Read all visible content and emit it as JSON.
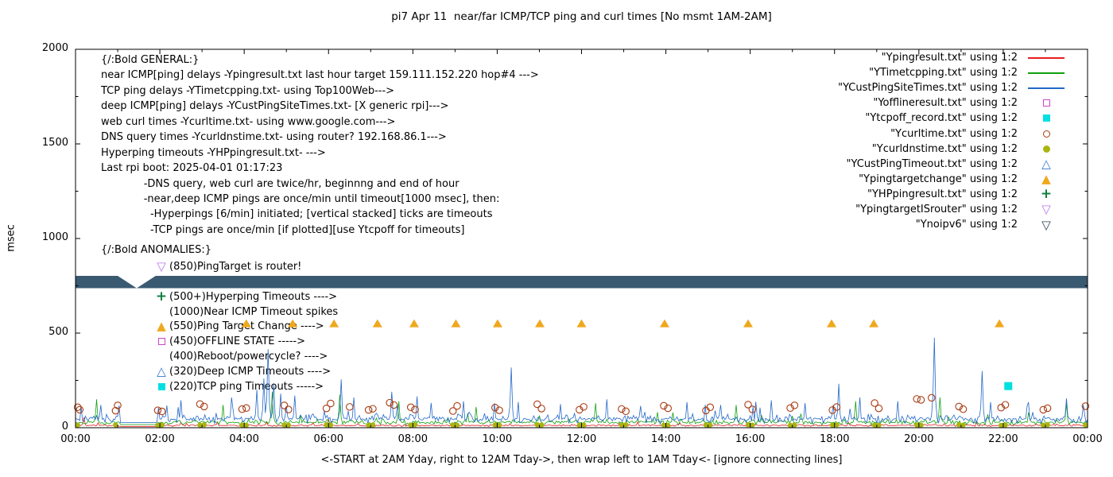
{
  "title": "pi7 Apr 11  near/far ICMP/TCP ping and curl times [No msmt 1AM-2AM]",
  "axes": {
    "ylabel": "msec",
    "xlabel": "<-START at 2AM Yday, right to 12AM Tday->, then wrap left to 1AM Tday<- [ignore connecting lines]",
    "yticks": [
      0,
      500,
      1000,
      1500,
      2000
    ],
    "xticks": [
      "00:00",
      "02:00",
      "04:00",
      "06:00",
      "08:00",
      "10:00",
      "12:00",
      "14:00",
      "16:00",
      "18:00",
      "20:00",
      "22:00",
      "00:00"
    ]
  },
  "general": {
    "lines": [
      "{/:Bold GENERAL:}",
      "near ICMP[ping] delays -Ypingresult.txt last hour target 159.111.152.220 hop#4 --->",
      "TCP ping delays -YTimetcpping.txt- using Top100Web--->",
      "deep ICMP[ping] delays -YCustPingSiteTimes.txt- [X generic rpi]--->",
      "web curl times -Ycurltime.txt- using www.google.com--->",
      "DNS query times -Ycurldnstime.txt- using router? 192.168.86.1--->",
      "Hyperping timeouts -YHPpingresult.txt- --->",
      "Last rpi boot: 2025-04-01 01:17:23",
      "             -DNS query, web curl are twice/hr, beginnng and end of hour",
      "             -near,deep ICMP pings are once/min until timeout[1000 msec], then:",
      "               -Hyperpings [6/min] initiated; [vertical stacked] ticks are timeouts",
      "               -TCP pings are once/min [if plotted][use Ytcpoff for timeouts]"
    ]
  },
  "anomalies": {
    "header": "{/:Bold ANOMALIES:}",
    "items": [
      {
        "marker": "triangle-down-open",
        "color": "#bb77ee",
        "text": "(850)PingTarget is router!"
      },
      {
        "marker": "plus",
        "color": "#0f8040",
        "text": "(500+)Hyperping Timeouts ---->"
      },
      {
        "marker": "",
        "color": "",
        "text": "(1000)Near ICMP Timeout spikes"
      },
      {
        "marker": "triangle-up-filled",
        "color": "#efa81e",
        "text": "(550)Ping Target Change ---->"
      },
      {
        "marker": "open-square",
        "color": "#cc44cc",
        "text": "(450)OFFLINE STATE ----->"
      },
      {
        "marker": "",
        "color": "",
        "text": "(400)Reboot/powercycle? ---->"
      },
      {
        "marker": "triangle-up-open",
        "color": "#3377cc",
        "text": "(320)Deep ICMP Timeouts ---->"
      },
      {
        "marker": "filled-square",
        "color": "#00e0e0",
        "text": "(220)TCP ping Timeouts ----->"
      }
    ]
  },
  "legend": {
    "entries": [
      {
        "label": "\"Ypingresult.txt\" using 1:2",
        "sample": "line",
        "color": "#e62020"
      },
      {
        "label": "\"YTimetcpping.txt\" using 1:2",
        "sample": "line",
        "color": "#10a010"
      },
      {
        "label": "\"YCustPingSiteTimes.txt\" using 1:2",
        "sample": "line",
        "color": "#2468c8"
      },
      {
        "label": "\"Yofflineresult.txt\" using 1:2",
        "sample": "open-square",
        "color": "#cc44cc"
      },
      {
        "label": "\"Ytcpoff_record.txt\" using 1:2",
        "sample": "filled-square",
        "color": "#00e0e0"
      },
      {
        "label": "\"Ycurltime.txt\" using 1:2",
        "sample": "open-circle",
        "color": "#a93b12"
      },
      {
        "label": "\"Ycurldnstime.txt\" using 1:2",
        "sample": "filled-circle",
        "color": "#aab410"
      },
      {
        "label": "\"YCustPingTimeout.txt\" using 1:2",
        "sample": "triangle-up-open",
        "color": "#3377cc"
      },
      {
        "label": "\"Ypingtargetchange\" using 1:2",
        "sample": "triangle-up-filled",
        "color": "#efa81e"
      },
      {
        "label": "\"YHPpingresult.txt\" using 1:2",
        "sample": "plus",
        "color": "#0f8040"
      },
      {
        "label": "\"YpingtargetISrouter\" using 1:2",
        "sample": "triangle-down-open",
        "color": "#bb77ee"
      },
      {
        "label": "\"Ynoipv6\" using 1:2",
        "sample": "triangle-down-open",
        "color": "#2e4356"
      }
    ]
  },
  "chart_data": {
    "type": "line",
    "title": "pi7 Apr 11  near/far ICMP/TCP ping and curl times [No msmt 1AM-2AM]",
    "xlabel": "<-START at 2AM Yday, right to 12AM Tday->, then wrap left to 1AM Tday<- [ignore connecting lines]",
    "ylabel": "msec",
    "x_unit": "hours",
    "xlim": [
      0,
      24
    ],
    "ylim": [
      0,
      2000
    ],
    "grid": false,
    "legend_position": "top-right",
    "no_measurement_gap_hours": [
      1.05,
      1.93
    ],
    "band": {
      "series": "Ynoipv6",
      "value_msec": 770,
      "thickness_msec": 65,
      "color": "#3a5a72",
      "gap_hours": [
        1.0,
        1.9
      ]
    },
    "line_series": [
      {
        "name": "Ypingresult.txt",
        "color": "#e62020",
        "baseline_msec": 12,
        "noise_msec": 7,
        "seed": 11,
        "spikes": [
          [
            0.2,
            55
          ],
          [
            6.0,
            45
          ]
        ]
      },
      {
        "name": "YTimetcpping.txt",
        "color": "#10a010",
        "baseline_msec": 28,
        "noise_msec": 20,
        "seed": 22,
        "spikes": [
          [
            0.5,
            150
          ],
          [
            3.5,
            120
          ],
          [
            4.65,
            190
          ],
          [
            6.25,
            175
          ],
          [
            7.65,
            140
          ],
          [
            9.5,
            110
          ],
          [
            12.33,
            130
          ],
          [
            15.66,
            120
          ],
          [
            18.5,
            140
          ],
          [
            20.5,
            160
          ],
          [
            23.5,
            130
          ]
        ]
      },
      {
        "name": "YCustPingSiteTimes.txt",
        "color": "#2468c8",
        "baseline_msec": 45,
        "noise_msec": 32,
        "seed": 33,
        "spikes": [
          [
            0.6,
            120
          ],
          [
            2.5,
            145
          ],
          [
            3.7,
            160
          ],
          [
            4.3,
            200
          ],
          [
            4.45,
            260
          ],
          [
            4.55,
            415
          ],
          [
            4.7,
            230
          ],
          [
            4.85,
            180
          ],
          [
            5.2,
            170
          ],
          [
            6.3,
            255
          ],
          [
            6.6,
            160
          ],
          [
            7.5,
            190
          ],
          [
            8.1,
            165
          ],
          [
            9.2,
            140
          ],
          [
            10.33,
            318
          ],
          [
            11.5,
            125
          ],
          [
            12.6,
            150
          ],
          [
            13.4,
            115
          ],
          [
            14.5,
            135
          ],
          [
            15.3,
            120
          ],
          [
            16.5,
            145
          ],
          [
            17.3,
            130
          ],
          [
            18.1,
            232
          ],
          [
            18.6,
            160
          ],
          [
            19.5,
            140
          ],
          [
            20.35,
            475
          ],
          [
            21.5,
            300
          ],
          [
            22.6,
            135
          ],
          [
            23.5,
            155
          ],
          [
            23.9,
            120
          ]
        ]
      }
    ],
    "scatter_series": [
      {
        "name": "Ycurltime.txt",
        "marker": "open-circle",
        "color": "#a93b12",
        "points": [
          [
            0.05,
            108
          ],
          [
            0.1,
            95
          ],
          [
            0.95,
            90
          ],
          [
            1.0,
            118
          ],
          [
            1.95,
            92
          ],
          [
            2.05,
            86
          ],
          [
            2.95,
            125
          ],
          [
            3.05,
            112
          ],
          [
            3.95,
            98
          ],
          [
            4.05,
            104
          ],
          [
            4.95,
            118
          ],
          [
            5.05,
            96
          ],
          [
            5.95,
            102
          ],
          [
            6.05,
            128
          ],
          [
            6.5,
            110
          ],
          [
            6.95,
            94
          ],
          [
            7.05,
            100
          ],
          [
            7.45,
            132
          ],
          [
            7.55,
            120
          ],
          [
            7.95,
            108
          ],
          [
            8.05,
            96
          ],
          [
            8.95,
            88
          ],
          [
            9.05,
            115
          ],
          [
            9.95,
            106
          ],
          [
            10.05,
            92
          ],
          [
            10.95,
            124
          ],
          [
            11.05,
            101
          ],
          [
            11.95,
            95
          ],
          [
            12.05,
            110
          ],
          [
            12.95,
            99
          ],
          [
            13.05,
            87
          ],
          [
            13.95,
            116
          ],
          [
            14.05,
            103
          ],
          [
            14.95,
            91
          ],
          [
            15.05,
            108
          ],
          [
            15.95,
            122
          ],
          [
            16.05,
            97
          ],
          [
            16.95,
            104
          ],
          [
            17.05,
            118
          ],
          [
            17.95,
            93
          ],
          [
            18.05,
            109
          ],
          [
            18.95,
            130
          ],
          [
            19.05,
            102
          ],
          [
            19.95,
            152
          ],
          [
            20.05,
            147
          ],
          [
            20.3,
            158
          ],
          [
            20.95,
            112
          ],
          [
            21.05,
            98
          ],
          [
            21.95,
            106
          ],
          [
            22.05,
            121
          ],
          [
            22.95,
            95
          ],
          [
            23.05,
            103
          ],
          [
            23.95,
            114
          ]
        ]
      },
      {
        "name": "Ycurldnstime.txt",
        "marker": "filled-circle",
        "color": "#aab410",
        "points": [
          [
            0.05,
            14
          ],
          [
            0.95,
            15
          ],
          [
            1.95,
            13
          ],
          [
            2.05,
            15
          ],
          [
            2.95,
            14
          ],
          [
            3.05,
            16
          ],
          [
            3.95,
            14
          ],
          [
            4.05,
            13
          ],
          [
            4.95,
            15
          ],
          [
            5.05,
            14
          ],
          [
            5.95,
            16
          ],
          [
            6.05,
            14
          ],
          [
            6.95,
            13
          ],
          [
            7.05,
            15
          ],
          [
            7.95,
            14
          ],
          [
            8.05,
            16
          ],
          [
            8.95,
            14
          ],
          [
            9.05,
            13
          ],
          [
            9.95,
            15
          ],
          [
            10.05,
            14
          ],
          [
            10.95,
            16
          ],
          [
            11.05,
            14
          ],
          [
            11.95,
            13
          ],
          [
            12.05,
            15
          ],
          [
            12.95,
            14
          ],
          [
            13.05,
            16
          ],
          [
            13.95,
            14
          ],
          [
            14.05,
            13
          ],
          [
            14.95,
            15
          ],
          [
            15.05,
            14
          ],
          [
            15.95,
            16
          ],
          [
            16.05,
            14
          ],
          [
            16.95,
            13
          ],
          [
            17.05,
            15
          ],
          [
            17.95,
            14
          ],
          [
            18.05,
            16
          ],
          [
            18.95,
            14
          ],
          [
            19.05,
            13
          ],
          [
            19.95,
            15
          ],
          [
            20.05,
            14
          ],
          [
            20.95,
            16
          ],
          [
            21.05,
            14
          ],
          [
            21.95,
            13
          ],
          [
            22.05,
            15
          ],
          [
            22.95,
            14
          ],
          [
            23.05,
            16
          ],
          [
            23.95,
            14
          ]
        ]
      },
      {
        "name": "Ypingtargetchange",
        "marker": "triangle-up-filled",
        "color": "#efa81e",
        "points": [
          [
            4.05,
            550
          ],
          [
            5.15,
            550
          ],
          [
            6.13,
            550
          ],
          [
            7.16,
            550
          ],
          [
            8.03,
            550
          ],
          [
            9.02,
            550
          ],
          [
            10.01,
            550
          ],
          [
            11.01,
            550
          ],
          [
            12.0,
            550
          ],
          [
            13.97,
            550
          ],
          [
            15.95,
            550
          ],
          [
            17.93,
            550
          ],
          [
            18.93,
            550
          ],
          [
            21.91,
            550
          ]
        ]
      },
      {
        "name": "Ytcpoff_record.txt",
        "marker": "filled-square",
        "color": "#00e0e0",
        "points": [
          [
            22.12,
            220
          ]
        ]
      }
    ]
  }
}
